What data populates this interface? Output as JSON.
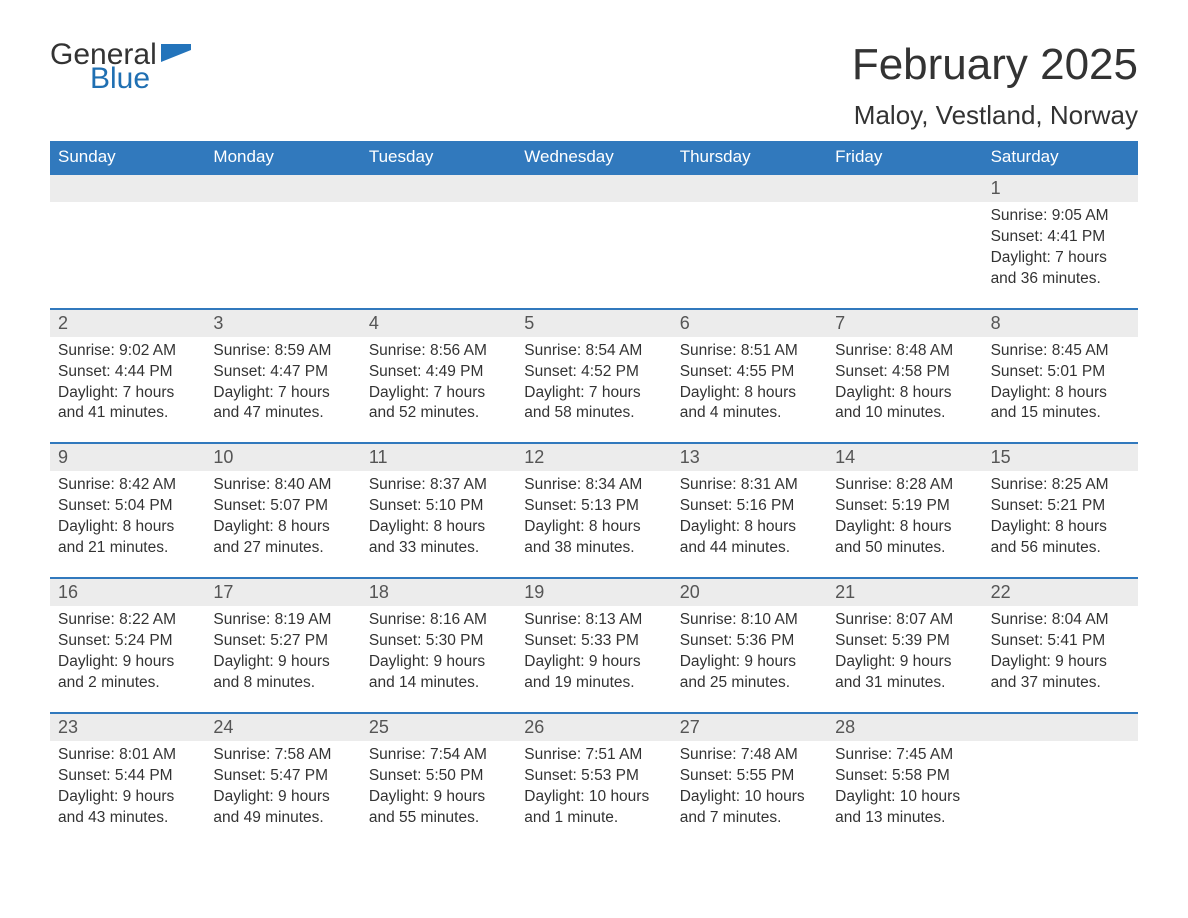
{
  "logo": {
    "general": "General",
    "blue": "Blue"
  },
  "title": "February 2025",
  "location": "Maloy, Vestland, Norway",
  "colors": {
    "header_bg": "#3179bd",
    "date_row_bg": "#ececec",
    "accent": "#2374bb",
    "text": "#333333",
    "background": "#ffffff"
  },
  "layout": {
    "columns": 7,
    "header_fontsize": 17,
    "date_fontsize": 18,
    "content_fontsize": 15.5,
    "title_fontsize": 44,
    "location_fontsize": 26
  },
  "day_labels": [
    "Sunday",
    "Monday",
    "Tuesday",
    "Wednesday",
    "Thursday",
    "Friday",
    "Saturday"
  ],
  "weeks": [
    [
      null,
      null,
      null,
      null,
      null,
      null,
      {
        "date": "1",
        "sunrise": "Sunrise: 9:05 AM",
        "sunset": "Sunset: 4:41 PM",
        "daylight1": "Daylight: 7 hours",
        "daylight2": "and 36 minutes."
      }
    ],
    [
      {
        "date": "2",
        "sunrise": "Sunrise: 9:02 AM",
        "sunset": "Sunset: 4:44 PM",
        "daylight1": "Daylight: 7 hours",
        "daylight2": "and 41 minutes."
      },
      {
        "date": "3",
        "sunrise": "Sunrise: 8:59 AM",
        "sunset": "Sunset: 4:47 PM",
        "daylight1": "Daylight: 7 hours",
        "daylight2": "and 47 minutes."
      },
      {
        "date": "4",
        "sunrise": "Sunrise: 8:56 AM",
        "sunset": "Sunset: 4:49 PM",
        "daylight1": "Daylight: 7 hours",
        "daylight2": "and 52 minutes."
      },
      {
        "date": "5",
        "sunrise": "Sunrise: 8:54 AM",
        "sunset": "Sunset: 4:52 PM",
        "daylight1": "Daylight: 7 hours",
        "daylight2": "and 58 minutes."
      },
      {
        "date": "6",
        "sunrise": "Sunrise: 8:51 AM",
        "sunset": "Sunset: 4:55 PM",
        "daylight1": "Daylight: 8 hours",
        "daylight2": "and 4 minutes."
      },
      {
        "date": "7",
        "sunrise": "Sunrise: 8:48 AM",
        "sunset": "Sunset: 4:58 PM",
        "daylight1": "Daylight: 8 hours",
        "daylight2": "and 10 minutes."
      },
      {
        "date": "8",
        "sunrise": "Sunrise: 8:45 AM",
        "sunset": "Sunset: 5:01 PM",
        "daylight1": "Daylight: 8 hours",
        "daylight2": "and 15 minutes."
      }
    ],
    [
      {
        "date": "9",
        "sunrise": "Sunrise: 8:42 AM",
        "sunset": "Sunset: 5:04 PM",
        "daylight1": "Daylight: 8 hours",
        "daylight2": "and 21 minutes."
      },
      {
        "date": "10",
        "sunrise": "Sunrise: 8:40 AM",
        "sunset": "Sunset: 5:07 PM",
        "daylight1": "Daylight: 8 hours",
        "daylight2": "and 27 minutes."
      },
      {
        "date": "11",
        "sunrise": "Sunrise: 8:37 AM",
        "sunset": "Sunset: 5:10 PM",
        "daylight1": "Daylight: 8 hours",
        "daylight2": "and 33 minutes."
      },
      {
        "date": "12",
        "sunrise": "Sunrise: 8:34 AM",
        "sunset": "Sunset: 5:13 PM",
        "daylight1": "Daylight: 8 hours",
        "daylight2": "and 38 minutes."
      },
      {
        "date": "13",
        "sunrise": "Sunrise: 8:31 AM",
        "sunset": "Sunset: 5:16 PM",
        "daylight1": "Daylight: 8 hours",
        "daylight2": "and 44 minutes."
      },
      {
        "date": "14",
        "sunrise": "Sunrise: 8:28 AM",
        "sunset": "Sunset: 5:19 PM",
        "daylight1": "Daylight: 8 hours",
        "daylight2": "and 50 minutes."
      },
      {
        "date": "15",
        "sunrise": "Sunrise: 8:25 AM",
        "sunset": "Sunset: 5:21 PM",
        "daylight1": "Daylight: 8 hours",
        "daylight2": "and 56 minutes."
      }
    ],
    [
      {
        "date": "16",
        "sunrise": "Sunrise: 8:22 AM",
        "sunset": "Sunset: 5:24 PM",
        "daylight1": "Daylight: 9 hours",
        "daylight2": "and 2 minutes."
      },
      {
        "date": "17",
        "sunrise": "Sunrise: 8:19 AM",
        "sunset": "Sunset: 5:27 PM",
        "daylight1": "Daylight: 9 hours",
        "daylight2": "and 8 minutes."
      },
      {
        "date": "18",
        "sunrise": "Sunrise: 8:16 AM",
        "sunset": "Sunset: 5:30 PM",
        "daylight1": "Daylight: 9 hours",
        "daylight2": "and 14 minutes."
      },
      {
        "date": "19",
        "sunrise": "Sunrise: 8:13 AM",
        "sunset": "Sunset: 5:33 PM",
        "daylight1": "Daylight: 9 hours",
        "daylight2": "and 19 minutes."
      },
      {
        "date": "20",
        "sunrise": "Sunrise: 8:10 AM",
        "sunset": "Sunset: 5:36 PM",
        "daylight1": "Daylight: 9 hours",
        "daylight2": "and 25 minutes."
      },
      {
        "date": "21",
        "sunrise": "Sunrise: 8:07 AM",
        "sunset": "Sunset: 5:39 PM",
        "daylight1": "Daylight: 9 hours",
        "daylight2": "and 31 minutes."
      },
      {
        "date": "22",
        "sunrise": "Sunrise: 8:04 AM",
        "sunset": "Sunset: 5:41 PM",
        "daylight1": "Daylight: 9 hours",
        "daylight2": "and 37 minutes."
      }
    ],
    [
      {
        "date": "23",
        "sunrise": "Sunrise: 8:01 AM",
        "sunset": "Sunset: 5:44 PM",
        "daylight1": "Daylight: 9 hours",
        "daylight2": "and 43 minutes."
      },
      {
        "date": "24",
        "sunrise": "Sunrise: 7:58 AM",
        "sunset": "Sunset: 5:47 PM",
        "daylight1": "Daylight: 9 hours",
        "daylight2": "and 49 minutes."
      },
      {
        "date": "25",
        "sunrise": "Sunrise: 7:54 AM",
        "sunset": "Sunset: 5:50 PM",
        "daylight1": "Daylight: 9 hours",
        "daylight2": "and 55 minutes."
      },
      {
        "date": "26",
        "sunrise": "Sunrise: 7:51 AM",
        "sunset": "Sunset: 5:53 PM",
        "daylight1": "Daylight: 10 hours",
        "daylight2": "and 1 minute."
      },
      {
        "date": "27",
        "sunrise": "Sunrise: 7:48 AM",
        "sunset": "Sunset: 5:55 PM",
        "daylight1": "Daylight: 10 hours",
        "daylight2": "and 7 minutes."
      },
      {
        "date": "28",
        "sunrise": "Sunrise: 7:45 AM",
        "sunset": "Sunset: 5:58 PM",
        "daylight1": "Daylight: 10 hours",
        "daylight2": "and 13 minutes."
      },
      null
    ]
  ]
}
